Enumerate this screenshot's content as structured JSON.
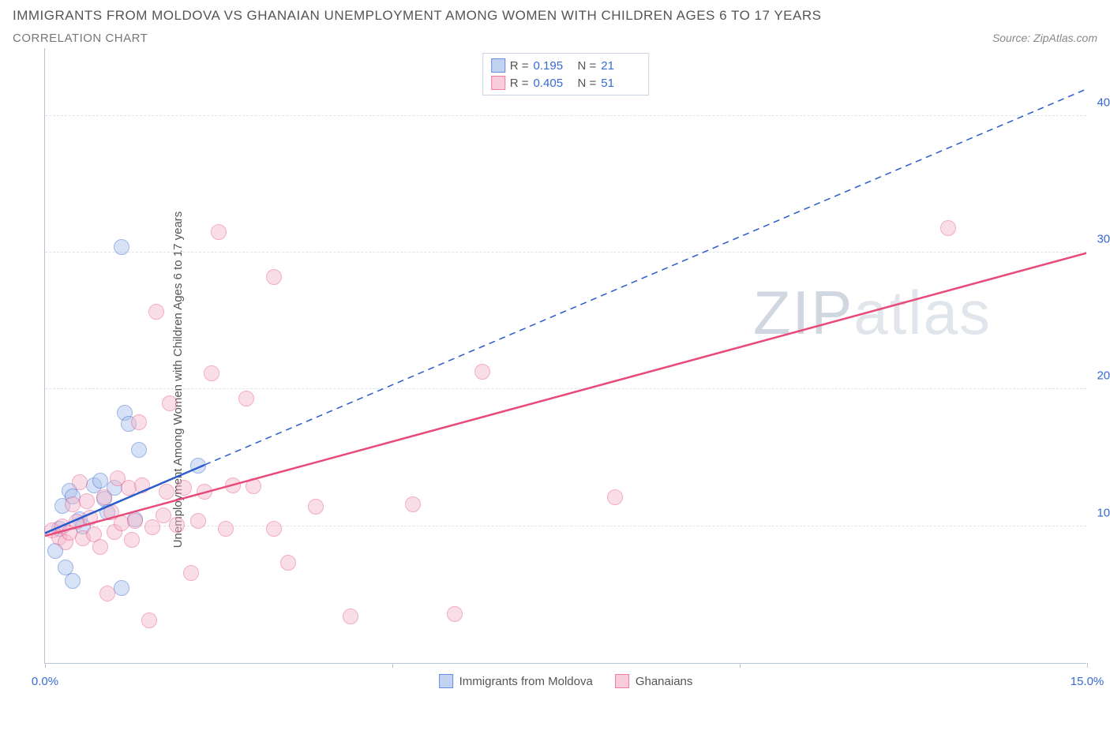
{
  "title": "IMMIGRANTS FROM MOLDOVA VS GHANAIAN UNEMPLOYMENT AMONG WOMEN WITH CHILDREN AGES 6 TO 17 YEARS",
  "subtitle": "CORRELATION CHART",
  "source": "Source: ZipAtlas.com",
  "watermark": {
    "part1": "ZIP",
    "part2": "atlas"
  },
  "chart": {
    "type": "scatter-correlation",
    "ylabel": "Unemployment Among Women with Children Ages 6 to 17 years",
    "background_color": "#ffffff",
    "axis_color": "#b7c3d6",
    "grid_color": "#dde3ec",
    "tick_label_color": "#3869d4",
    "xlim": [
      0,
      15
    ],
    "ylim": [
      0,
      45
    ],
    "xticks": [
      0,
      5,
      10,
      15
    ],
    "xtick_labels": [
      "0.0%",
      "",
      "",
      "15.0%"
    ],
    "yticks": [
      10,
      20,
      30,
      40
    ],
    "ytick_labels": [
      "10.0%",
      "20.0%",
      "30.0%",
      "40.0%"
    ],
    "marker_radius": 10,
    "marker_opacity": 0.32,
    "series": [
      {
        "name": "Immigrants from Moldova",
        "stroke": "#295bcc",
        "fill": "#a8c1ec",
        "fill_opacity": 0.45,
        "R": "0.195",
        "N": "21",
        "trend": {
          "solid": {
            "x1": 0.0,
            "y1": 9.5,
            "x2": 2.3,
            "y2": 14.5
          },
          "dashed": {
            "x1": 2.3,
            "y1": 14.5,
            "x2": 15.0,
            "y2": 42.0
          }
        },
        "points": [
          [
            0.15,
            8.2
          ],
          [
            0.2,
            9.8
          ],
          [
            0.25,
            11.5
          ],
          [
            0.3,
            7.0
          ],
          [
            0.35,
            12.6
          ],
          [
            0.4,
            12.2
          ],
          [
            0.4,
            6.0
          ],
          [
            0.5,
            10.5
          ],
          [
            0.55,
            10.0
          ],
          [
            0.7,
            13.0
          ],
          [
            0.8,
            13.3
          ],
          [
            0.85,
            12.0
          ],
          [
            0.9,
            11.0
          ],
          [
            1.0,
            12.8
          ],
          [
            1.1,
            5.5
          ],
          [
            1.15,
            18.3
          ],
          [
            1.2,
            17.5
          ],
          [
            1.3,
            10.5
          ],
          [
            1.35,
            15.6
          ],
          [
            1.1,
            30.4
          ],
          [
            2.2,
            14.4
          ]
        ]
      },
      {
        "name": "Ghanaians",
        "stroke": "#e84a7a",
        "fill": "#f6b7cb",
        "fill_opacity": 0.45,
        "R": "0.405",
        "N": "51",
        "trend": {
          "solid": {
            "x1": 0.0,
            "y1": 9.3,
            "x2": 15.0,
            "y2": 30.0
          }
        },
        "points": [
          [
            0.1,
            9.7
          ],
          [
            0.2,
            9.2
          ],
          [
            0.25,
            10.0
          ],
          [
            0.3,
            8.8
          ],
          [
            0.35,
            9.5
          ],
          [
            0.4,
            11.6
          ],
          [
            0.45,
            10.3
          ],
          [
            0.5,
            13.2
          ],
          [
            0.55,
            9.1
          ],
          [
            0.6,
            11.8
          ],
          [
            0.65,
            10.6
          ],
          [
            0.7,
            9.4
          ],
          [
            0.8,
            8.5
          ],
          [
            0.85,
            12.1
          ],
          [
            0.9,
            5.1
          ],
          [
            0.95,
            11.0
          ],
          [
            1.0,
            9.6
          ],
          [
            1.05,
            13.5
          ],
          [
            1.1,
            10.2
          ],
          [
            1.2,
            12.8
          ],
          [
            1.25,
            9.0
          ],
          [
            1.3,
            10.4
          ],
          [
            1.35,
            17.6
          ],
          [
            1.4,
            13.0
          ],
          [
            1.5,
            3.1
          ],
          [
            1.55,
            9.9
          ],
          [
            1.6,
            25.7
          ],
          [
            1.7,
            10.8
          ],
          [
            1.75,
            12.5
          ],
          [
            1.8,
            19.0
          ],
          [
            1.9,
            10.1
          ],
          [
            2.0,
            12.8
          ],
          [
            2.1,
            6.6
          ],
          [
            2.2,
            10.4
          ],
          [
            2.3,
            12.5
          ],
          [
            2.4,
            21.2
          ],
          [
            2.5,
            31.5
          ],
          [
            2.6,
            9.8
          ],
          [
            2.7,
            13.0
          ],
          [
            2.9,
            19.3
          ],
          [
            3.0,
            12.9
          ],
          [
            3.3,
            9.8
          ],
          [
            3.3,
            28.2
          ],
          [
            3.5,
            7.3
          ],
          [
            3.9,
            11.4
          ],
          [
            4.4,
            3.4
          ],
          [
            5.3,
            11.6
          ],
          [
            5.9,
            3.6
          ],
          [
            6.3,
            21.3
          ],
          [
            8.2,
            12.1
          ],
          [
            13.0,
            31.8
          ]
        ]
      }
    ]
  }
}
